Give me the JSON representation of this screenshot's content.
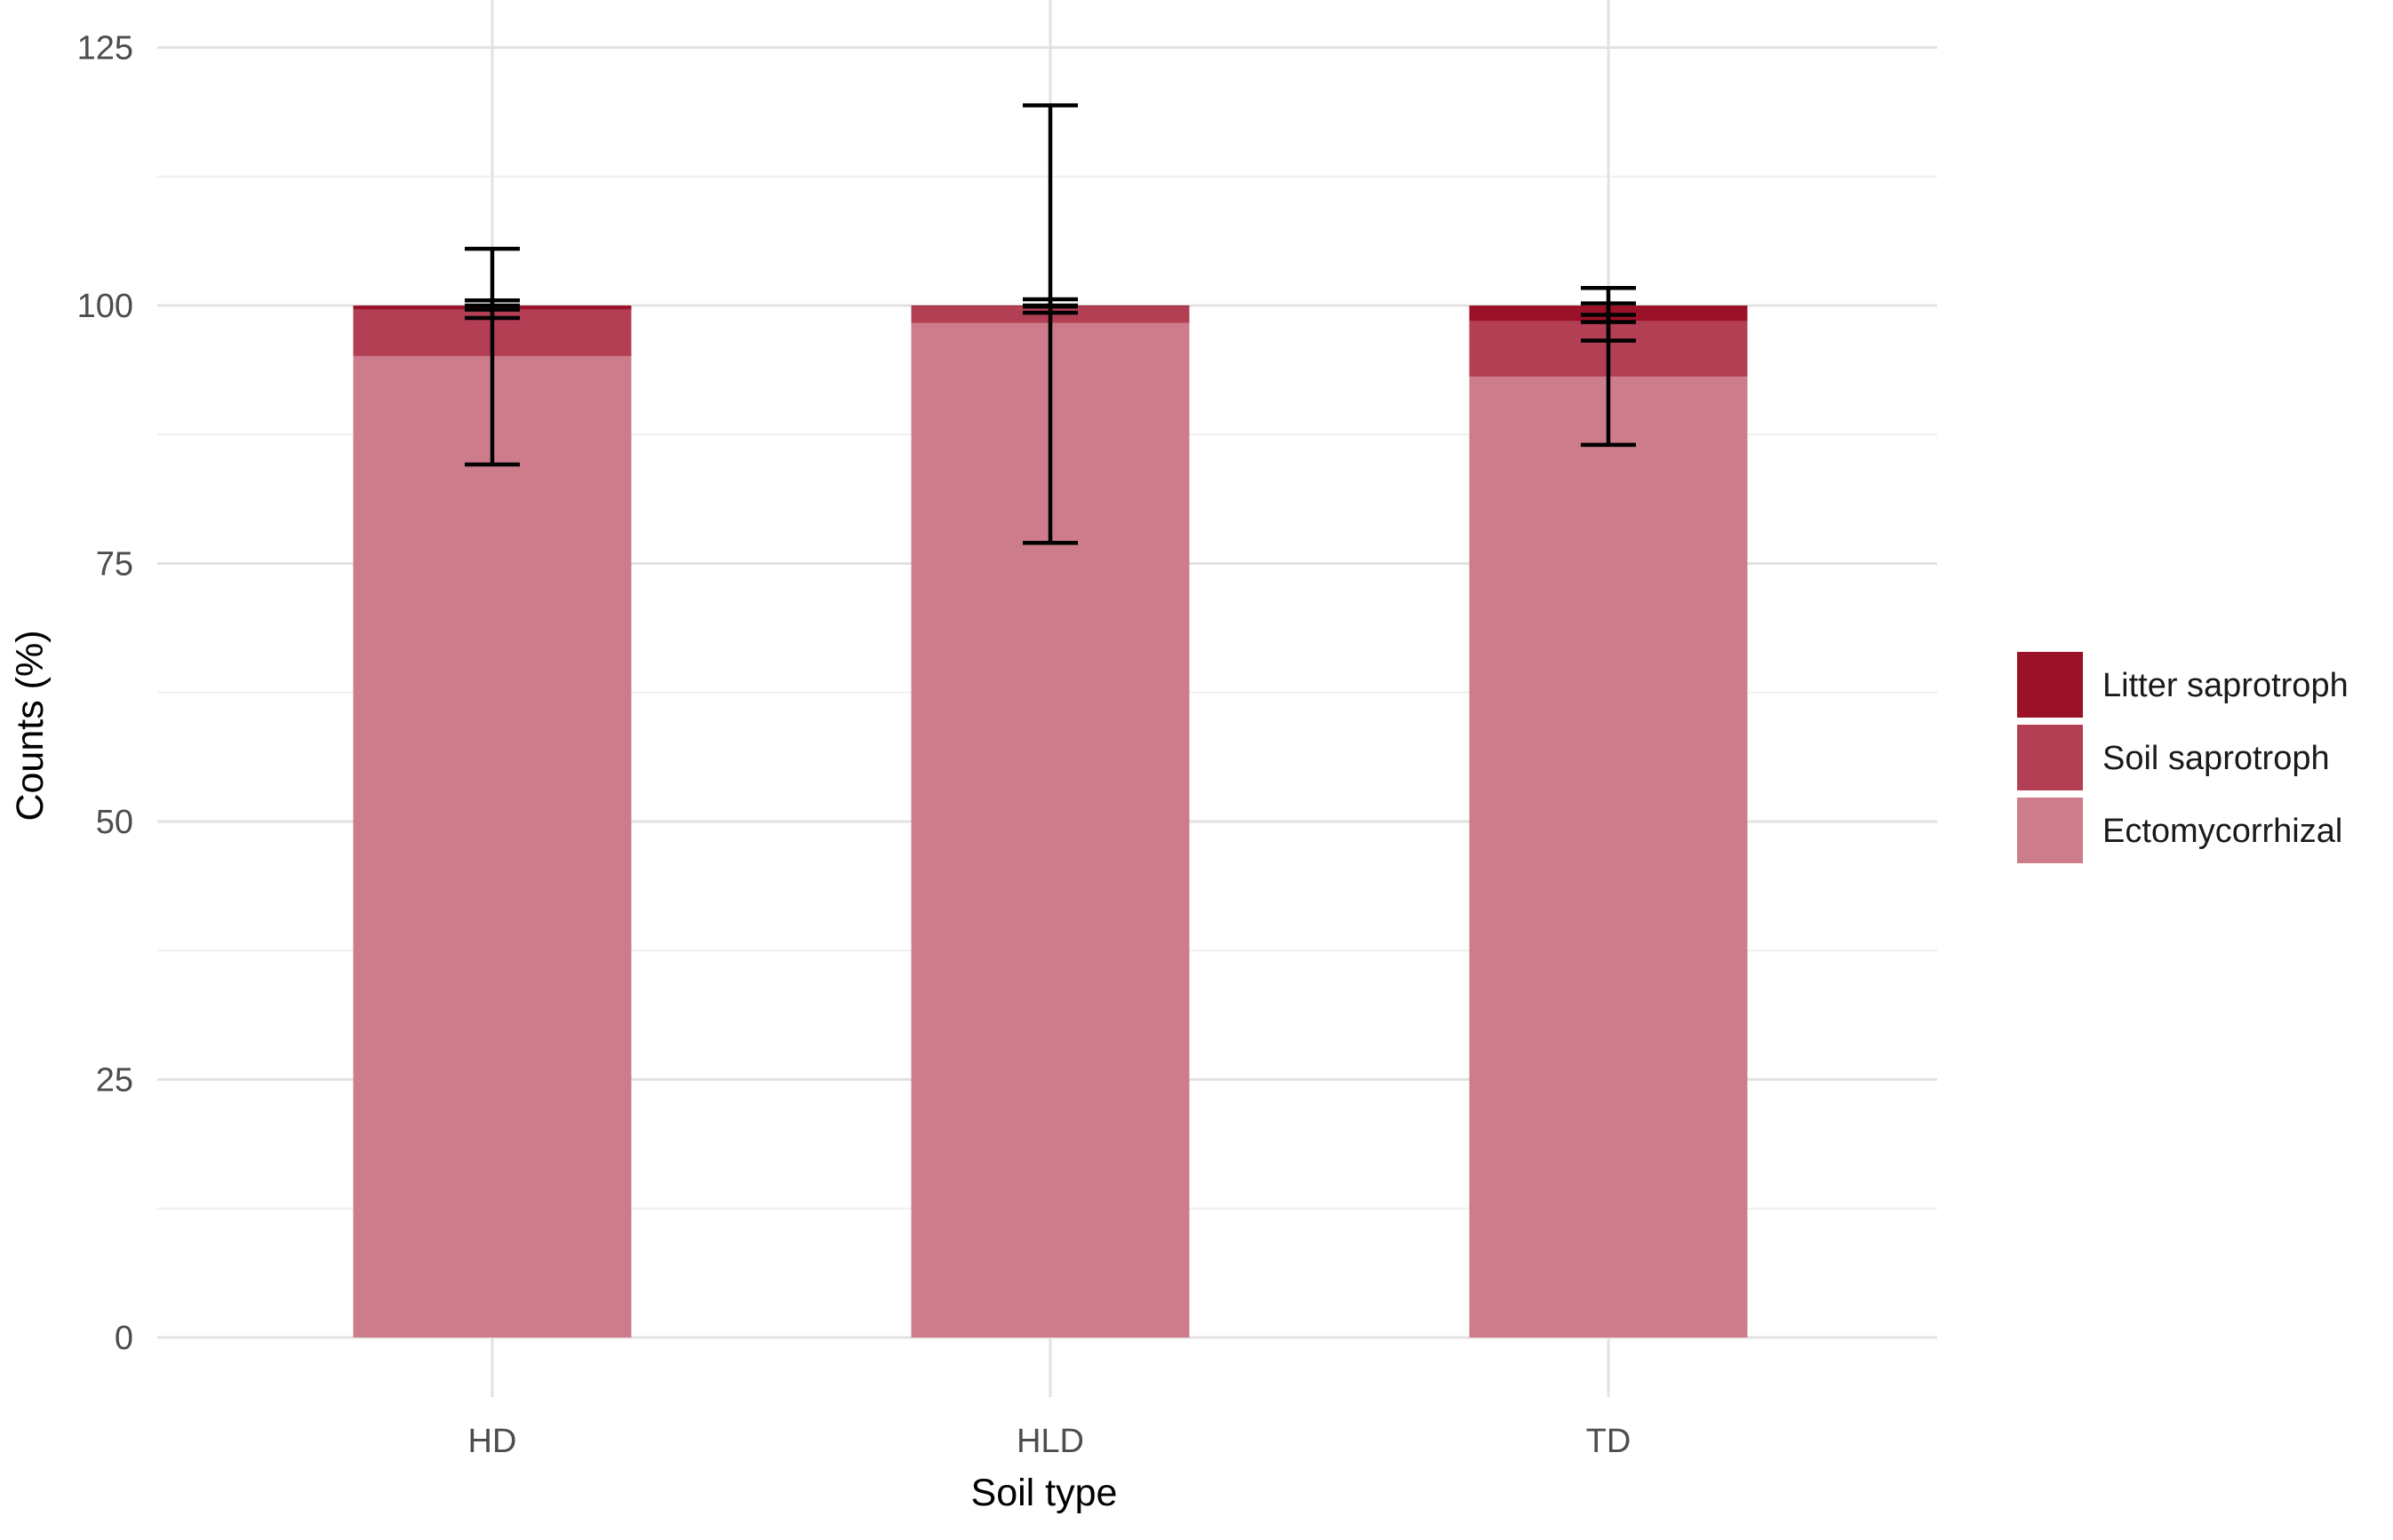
{
  "figure": {
    "y_axis": {
      "title": "Counts (%)",
      "tick_labels": [
        "0",
        "25",
        "50",
        "75",
        "100",
        "125"
      ]
    },
    "x_axis": {
      "title": "Soil type",
      "categories": [
        "HD",
        "HLD",
        "TD"
      ]
    },
    "legend": {
      "items": [
        {
          "label": "Litter saprotroph",
          "color": "#9B1127"
        },
        {
          "label": "Soil saprotroph",
          "color": "#B33F55"
        },
        {
          "label": "Ectomycorrhizal",
          "color": "#CC7C8B"
        }
      ]
    }
  },
  "chart_data": {
    "type": "bar",
    "stacked": true,
    "title": "",
    "xlabel": "Soil type",
    "ylabel": "Counts (%)",
    "categories": [
      "HD",
      "HLD",
      "TD"
    ],
    "ylim": [
      0,
      125
    ],
    "yticks": [
      0,
      25,
      50,
      75,
      100,
      125
    ],
    "grid": {
      "horizontal": "major+minor",
      "vertical": "major at category centers",
      "minor_step": 12.5
    },
    "legend_position": "right",
    "legend_order_top_to_bottom": [
      "Litter saprotroph",
      "Soil saprotroph",
      "Ectomycorrhizal"
    ],
    "series": [
      {
        "name": "Ectomycorrhizal",
        "color": "#CC7C8B",
        "values": [
          95.1,
          98.3,
          93.1
        ],
        "cumulative_top": [
          95.1,
          98.3,
          93.1
        ],
        "error_low": [
          84.6,
          77.0,
          86.5
        ],
        "error_high": [
          105.5,
          119.4,
          99.1
        ]
      },
      {
        "name": "Soil saprotroph",
        "color": "#B33F55",
        "values": [
          4.5,
          1.6,
          5.4
        ],
        "cumulative_top": [
          99.6,
          99.9,
          98.5
        ],
        "error_low": [
          98.8,
          99.3,
          96.6
        ],
        "error_high": [
          100.0,
          100.0,
          100.2
        ]
      },
      {
        "name": "Litter saprotroph",
        "color": "#9B1127",
        "values": [
          0.4,
          0.1,
          1.5
        ],
        "cumulative_top": [
          100.0,
          100.0,
          100.0
        ],
        "error_low": [
          99.6,
          99.9,
          98.4
        ],
        "error_high": [
          100.5,
          100.6,
          101.7
        ]
      }
    ]
  }
}
